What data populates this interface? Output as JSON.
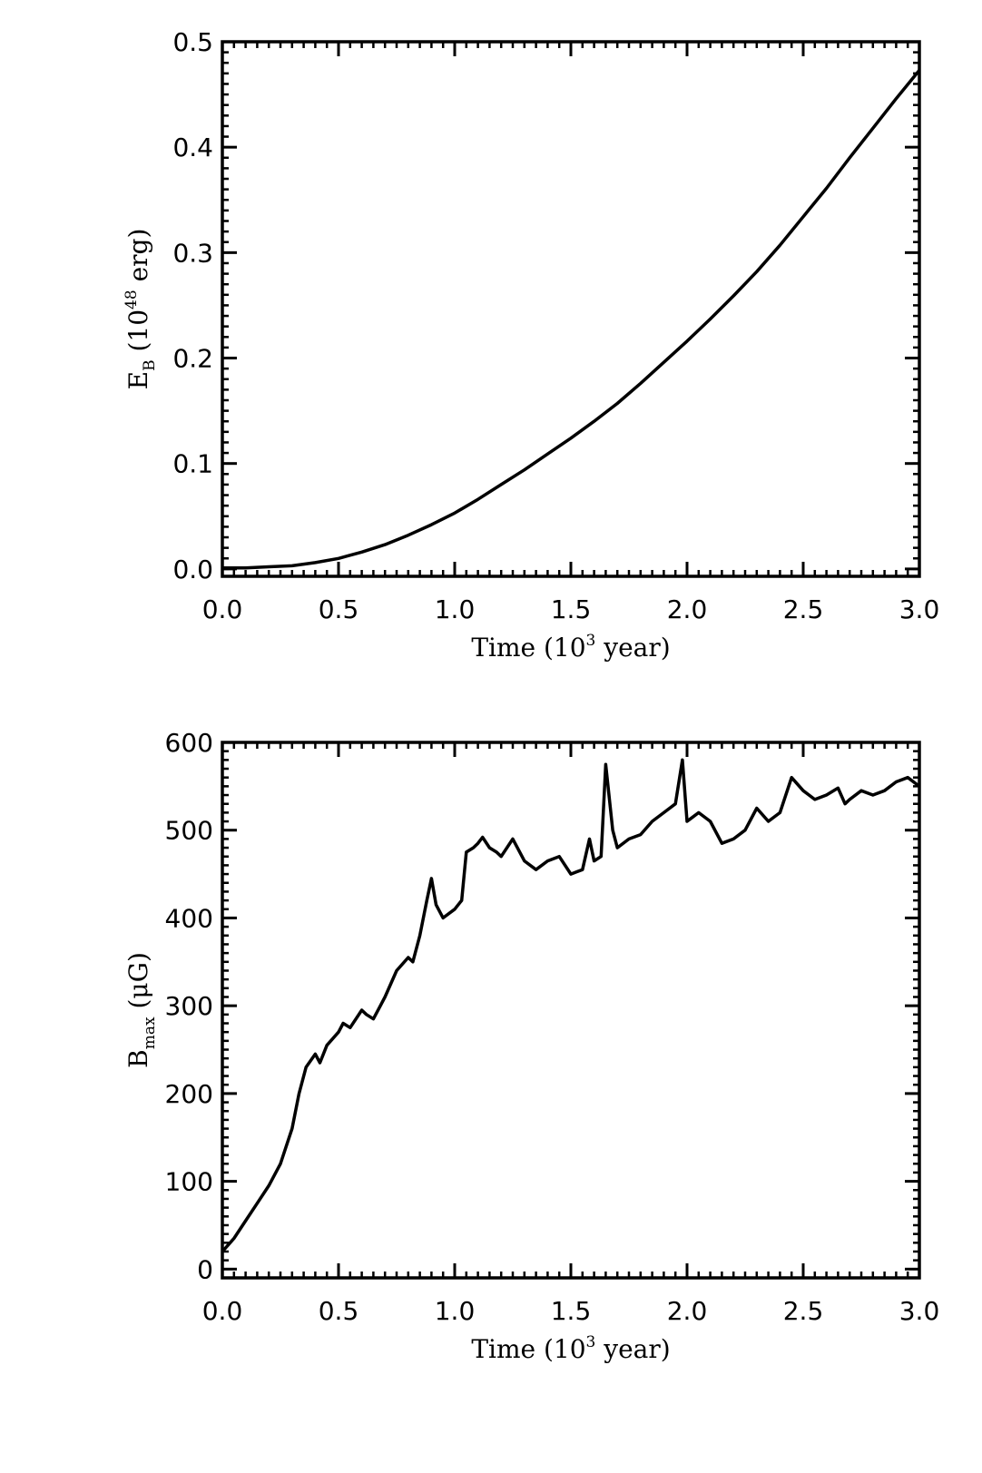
{
  "chart_data": [
    {
      "type": "line",
      "title": "",
      "xlabel": {
        "prefix": "Time (10",
        "sup": "3",
        "suffix": " year)"
      },
      "ylabel": {
        "base": "E",
        "sub": "B",
        "mid": " (10",
        "sup": "48",
        "suffix": " erg)"
      },
      "xlim": [
        0,
        3.0
      ],
      "ylim": [
        -0.007,
        0.5
      ],
      "xticks": [
        "0.0",
        "0.5",
        "1.0",
        "1.5",
        "2.0",
        "2.5",
        "3.0"
      ],
      "yticks": [
        "0.0",
        "0.1",
        "0.2",
        "0.3",
        "0.4",
        "0.5"
      ],
      "grid": false,
      "legend": "none",
      "series": [
        {
          "x": [
            0.0,
            0.1,
            0.2,
            0.3,
            0.4,
            0.5,
            0.6,
            0.7,
            0.8,
            0.9,
            1.0,
            1.1,
            1.2,
            1.3,
            1.4,
            1.5,
            1.6,
            1.7,
            1.8,
            1.9,
            2.0,
            2.1,
            2.2,
            2.3,
            2.4,
            2.5,
            2.6,
            2.7,
            2.8,
            2.9,
            3.0
          ],
          "y": [
            0.001,
            0.001,
            0.002,
            0.003,
            0.006,
            0.01,
            0.016,
            0.023,
            0.032,
            0.042,
            0.053,
            0.066,
            0.08,
            0.094,
            0.109,
            0.124,
            0.14,
            0.157,
            0.176,
            0.196,
            0.216,
            0.237,
            0.259,
            0.282,
            0.307,
            0.334,
            0.361,
            0.39,
            0.418,
            0.446,
            0.473
          ]
        }
      ]
    },
    {
      "type": "line",
      "title": "",
      "xlabel": {
        "prefix": "Time (10",
        "sup": "3",
        "suffix": " year)"
      },
      "ylabel": {
        "base": "B",
        "sub": "max",
        "mid": " (",
        "greek": "μ",
        "suffix": "G)"
      },
      "xlim": [
        0,
        3.0
      ],
      "ylim": [
        -10,
        600
      ],
      "xticks": [
        "0.0",
        "0.5",
        "1.0",
        "1.5",
        "2.0",
        "2.5",
        "3.0"
      ],
      "yticks": [
        "0",
        "100",
        "200",
        "300",
        "400",
        "500",
        "600"
      ],
      "grid": false,
      "legend": "none",
      "series": [
        {
          "x": [
            0.0,
            0.05,
            0.1,
            0.15,
            0.2,
            0.25,
            0.3,
            0.33,
            0.36,
            0.4,
            0.42,
            0.45,
            0.5,
            0.52,
            0.55,
            0.6,
            0.62,
            0.65,
            0.68,
            0.7,
            0.75,
            0.8,
            0.82,
            0.85,
            0.88,
            0.9,
            0.92,
            0.95,
            1.0,
            1.03,
            1.05,
            1.08,
            1.1,
            1.12,
            1.15,
            1.18,
            1.2,
            1.25,
            1.3,
            1.35,
            1.4,
            1.45,
            1.5,
            1.55,
            1.58,
            1.6,
            1.63,
            1.65,
            1.68,
            1.7,
            1.75,
            1.8,
            1.85,
            1.9,
            1.95,
            1.98,
            2.0,
            2.05,
            2.1,
            2.15,
            2.2,
            2.25,
            2.3,
            2.35,
            2.4,
            2.45,
            2.5,
            2.55,
            2.6,
            2.65,
            2.68,
            2.7,
            2.75,
            2.8,
            2.85,
            2.9,
            2.95,
            3.0
          ],
          "y": [
            20,
            35,
            55,
            75,
            95,
            120,
            160,
            200,
            230,
            245,
            235,
            255,
            270,
            280,
            275,
            295,
            290,
            285,
            300,
            310,
            340,
            355,
            350,
            380,
            420,
            445,
            415,
            400,
            410,
            420,
            475,
            480,
            485,
            492,
            480,
            475,
            470,
            490,
            465,
            455,
            465,
            470,
            450,
            455,
            490,
            465,
            470,
            575,
            500,
            480,
            490,
            495,
            510,
            520,
            530,
            580,
            510,
            520,
            510,
            485,
            490,
            500,
            525,
            510,
            520,
            560,
            545,
            535,
            540,
            548,
            530,
            535,
            545,
            540,
            545,
            555,
            560,
            550
          ]
        }
      ]
    }
  ]
}
